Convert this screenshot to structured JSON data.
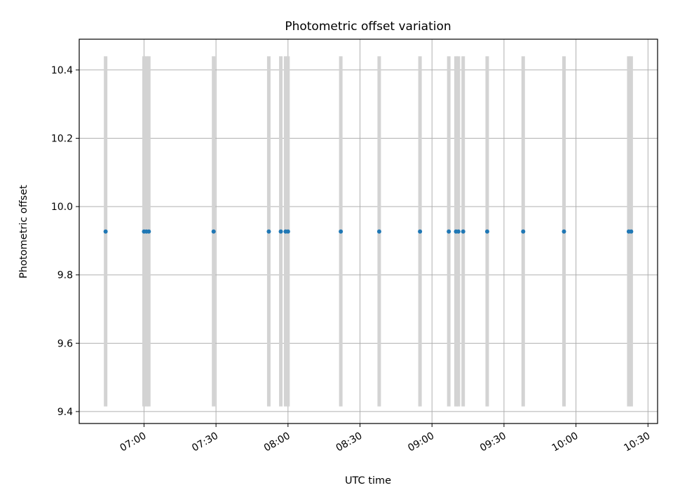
{
  "chart_data": {
    "type": "scatter",
    "title": "Photometric offset variation",
    "xlabel": "UTC time",
    "ylabel": "Photometric offset",
    "x_unit": "UTC time (HH:MM)",
    "xlim": [
      "06:33",
      "10:34"
    ],
    "ylim": [
      9.365,
      10.49
    ],
    "x_ticks": [
      "07:00",
      "07:30",
      "08:00",
      "08:30",
      "09:00",
      "09:30",
      "10:00",
      "10:30"
    ],
    "y_ticks": [
      9.4,
      9.6,
      9.8,
      10.0,
      10.2,
      10.4
    ],
    "grid": true,
    "legend": "none",
    "point_color": "#1f77b4",
    "bar_color": "#d3d3d3",
    "series": [
      {
        "marker": "point",
        "x": [
          "06:44",
          "07:00",
          "07:01",
          "07:02",
          "07:29",
          "07:52",
          "07:57",
          "07:59",
          "08:00",
          "08:22",
          "08:38",
          "08:55",
          "09:07",
          "09:10",
          "09:11",
          "09:13",
          "09:23",
          "09:38",
          "09:55",
          "10:22",
          "10:23"
        ],
        "y": [
          9.927,
          9.927,
          9.927,
          9.927,
          9.927,
          9.927,
          9.927,
          9.927,
          9.927,
          9.927,
          9.927,
          9.927,
          9.927,
          9.927,
          9.927,
          9.927,
          9.927,
          9.927,
          9.927,
          9.927,
          9.927
        ],
        "y_lower": [
          9.415,
          9.415,
          9.415,
          9.415,
          9.415,
          9.415,
          9.415,
          9.415,
          9.415,
          9.415,
          9.415,
          9.415,
          9.415,
          9.415,
          9.415,
          9.415,
          9.415,
          9.415,
          9.415,
          9.415,
          9.415
        ],
        "y_upper": [
          10.44,
          10.44,
          10.44,
          10.44,
          10.44,
          10.44,
          10.44,
          10.44,
          10.44,
          10.44,
          10.44,
          10.44,
          10.44,
          10.44,
          10.44,
          10.44,
          10.44,
          10.44,
          10.44,
          10.44,
          10.44
        ]
      }
    ]
  }
}
